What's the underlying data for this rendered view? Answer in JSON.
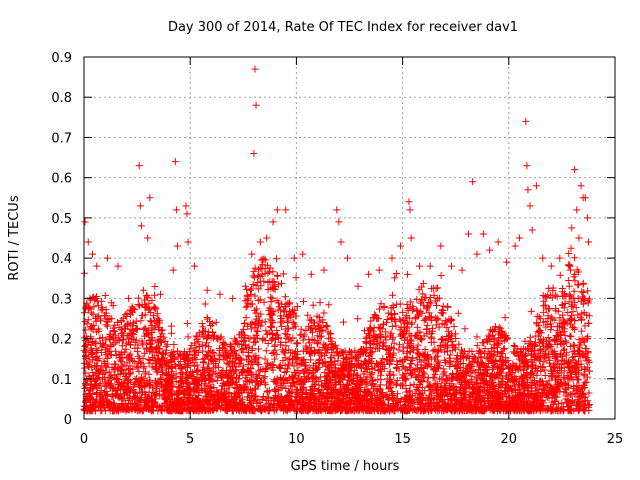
{
  "chart_data": {
    "type": "scatter",
    "title": "Day 300 of 2014, Rate Of TEC Index for receiver dav1",
    "xlabel": "GPS time / hours",
    "ylabel": "ROTI / TECUs",
    "xlim": [
      0,
      25
    ],
    "ylim": [
      0,
      0.9
    ],
    "xticks": [
      0,
      5,
      10,
      15,
      20,
      25
    ],
    "xtick_labels": [
      "0",
      "5",
      "10",
      "15",
      "20",
      "25"
    ],
    "yticks": [
      0,
      0.1,
      0.2,
      0.3,
      0.4,
      0.5,
      0.6,
      0.7,
      0.8,
      0.9
    ],
    "ytick_labels": [
      "0",
      "0.1",
      "0.2",
      "0.3",
      "0.4",
      "0.5",
      "0.6",
      "0.7",
      "0.8",
      "0.9"
    ],
    "grid": true,
    "marker": "+",
    "marker_color": "#ff0000",
    "series": [
      {
        "name": "ROTI",
        "points": [
          [
            0.05,
            0.49
          ],
          [
            0.2,
            0.44
          ],
          [
            0.4,
            0.41
          ],
          [
            0.6,
            0.38
          ],
          [
            1.1,
            0.4
          ],
          [
            1.6,
            0.38
          ],
          [
            2.1,
            0.3
          ],
          [
            2.6,
            0.63
          ],
          [
            2.65,
            0.53
          ],
          [
            2.7,
            0.48
          ],
          [
            3.1,
            0.55
          ],
          [
            3.0,
            0.45
          ],
          [
            3.6,
            0.31
          ],
          [
            4.2,
            0.37
          ],
          [
            4.3,
            0.64
          ],
          [
            4.35,
            0.52
          ],
          [
            4.4,
            0.43
          ],
          [
            4.8,
            0.53
          ],
          [
            4.85,
            0.51
          ],
          [
            4.9,
            0.44
          ],
          [
            5.2,
            0.38
          ],
          [
            5.8,
            0.32
          ],
          [
            6.4,
            0.31
          ],
          [
            7.0,
            0.3
          ],
          [
            7.6,
            0.33
          ],
          [
            7.9,
            0.41
          ],
          [
            8.05,
            0.87
          ],
          [
            8.1,
            0.78
          ],
          [
            8.0,
            0.66
          ],
          [
            8.3,
            0.44
          ],
          [
            8.6,
            0.45
          ],
          [
            8.9,
            0.49
          ],
          [
            9.1,
            0.52
          ],
          [
            9.5,
            0.52
          ],
          [
            9.9,
            0.4
          ],
          [
            10.3,
            0.41
          ],
          [
            10.7,
            0.36
          ],
          [
            11.3,
            0.37
          ],
          [
            11.9,
            0.52
          ],
          [
            12.0,
            0.49
          ],
          [
            12.1,
            0.44
          ],
          [
            12.4,
            0.4
          ],
          [
            12.9,
            0.33
          ],
          [
            13.4,
            0.36
          ],
          [
            13.9,
            0.37
          ],
          [
            14.5,
            0.4
          ],
          [
            14.9,
            0.43
          ],
          [
            15.3,
            0.54
          ],
          [
            15.35,
            0.52
          ],
          [
            15.4,
            0.45
          ],
          [
            15.8,
            0.38
          ],
          [
            16.3,
            0.38
          ],
          [
            16.8,
            0.43
          ],
          [
            17.3,
            0.38
          ],
          [
            17.8,
            0.37
          ],
          [
            18.1,
            0.46
          ],
          [
            18.3,
            0.59
          ],
          [
            18.5,
            0.41
          ],
          [
            18.8,
            0.46
          ],
          [
            19.1,
            0.42
          ],
          [
            19.5,
            0.44
          ],
          [
            19.9,
            0.39
          ],
          [
            20.3,
            0.43
          ],
          [
            20.5,
            0.45
          ],
          [
            20.8,
            0.74
          ],
          [
            20.85,
            0.63
          ],
          [
            20.9,
            0.57
          ],
          [
            21.0,
            0.53
          ],
          [
            21.1,
            0.47
          ],
          [
            21.3,
            0.58
          ],
          [
            21.6,
            0.4
          ],
          [
            22.0,
            0.38
          ],
          [
            22.4,
            0.4
          ],
          [
            22.9,
            0.37
          ],
          [
            23.1,
            0.62
          ],
          [
            23.2,
            0.52
          ],
          [
            23.3,
            0.45
          ],
          [
            23.4,
            0.58
          ],
          [
            23.5,
            0.55
          ],
          [
            23.6,
            0.55
          ],
          [
            23.7,
            0.5
          ],
          [
            23.75,
            0.44
          ]
        ]
      }
    ]
  }
}
